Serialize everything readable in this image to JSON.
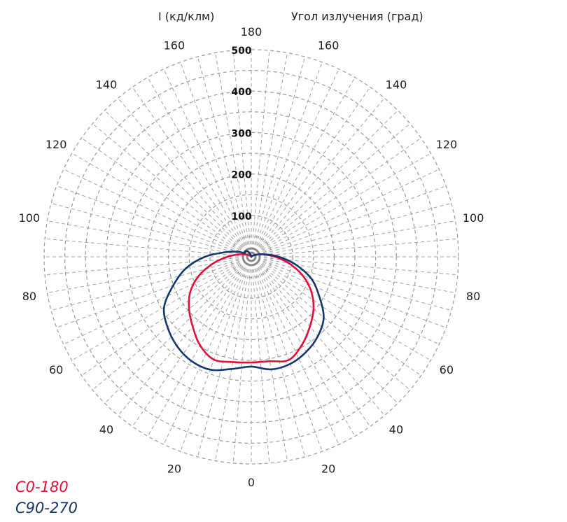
{
  "chart_data": {
    "type": "polar",
    "ylabel": "I (кд/клм)",
    "angle_label": "Угол излучения (град)",
    "radial_ticks": [
      100,
      200,
      300,
      400,
      500
    ],
    "rmax": 500,
    "angle_ticks_left": [
      "180",
      "160",
      "140",
      "120",
      "100",
      "80",
      "60",
      "40",
      "20",
      "0"
    ],
    "angle_ticks_right": [
      "160",
      "140",
      "120",
      "100",
      "80",
      "60",
      "40",
      "20"
    ],
    "grid": true,
    "legend_position": "bottom-left",
    "series": [
      {
        "name": "C0-180",
        "color": "#e0103a",
        "angles": [
          0,
          10,
          20,
          30,
          40,
          50,
          60,
          70,
          80,
          90,
          100,
          110,
          120,
          130,
          140,
          150,
          160,
          170,
          180,
          190,
          200,
          210,
          220,
          230,
          240,
          250,
          260,
          270,
          280,
          290,
          300,
          310,
          320,
          330,
          340,
          350,
          360
        ],
        "values": [
          255,
          256,
          265,
          245,
          220,
          196,
          167,
          132,
          93,
          58,
          32,
          17,
          8,
          4,
          2,
          1,
          0,
          0,
          0,
          0,
          0,
          1,
          2,
          4,
          8,
          17,
          32,
          58,
          94,
          135,
          170,
          196,
          220,
          247,
          264,
          258,
          255
        ]
      },
      {
        "name": "C90-270",
        "color": "#15366e",
        "angles": [
          0,
          10,
          20,
          30,
          40,
          50,
          60,
          70,
          80,
          90,
          100,
          110,
          120,
          130,
          140,
          150,
          160,
          170,
          180,
          190,
          200,
          210,
          220,
          230,
          240,
          250,
          260,
          270,
          280,
          290,
          300,
          310,
          320,
          330,
          340,
          350,
          360
        ],
        "values": [
          265,
          276,
          275,
          265,
          250,
          228,
          189,
          154,
          109,
          67,
          34,
          16,
          7,
          3,
          1,
          0,
          0,
          0,
          0,
          2,
          6,
          14,
          18,
          20,
          18,
          36,
          64,
          112,
          160,
          200,
          243,
          264,
          280,
          290,
          290,
          275,
          265
        ]
      }
    ]
  }
}
